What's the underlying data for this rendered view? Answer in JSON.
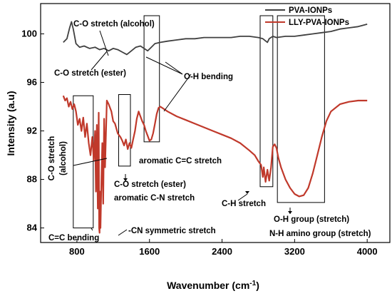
{
  "chart_data": {
    "type": "line",
    "xlabel": "Wavenumber (cm",
    "xlabel_sup": "-1",
    "xlabel_tail": ")",
    "ylabel": "Intensity (a.u)",
    "xlim": [
      400,
      4250
    ],
    "ylim": [
      82.8,
      102.5
    ],
    "xticks": [
      800,
      1600,
      2400,
      3200,
      4000
    ],
    "yticks": [
      84,
      88,
      92,
      96,
      100
    ],
    "legend_position": "top-right",
    "series": [
      {
        "name": "PVA-IONPs",
        "color": "#404040",
        "points": [
          [
            650,
            99.3
          ],
          [
            690,
            99.6
          ],
          [
            720,
            100.5
          ],
          [
            740,
            101.0
          ],
          [
            760,
            100.4
          ],
          [
            790,
            99.2
          ],
          [
            830,
            98.9
          ],
          [
            880,
            99.0
          ],
          [
            940,
            98.8
          ],
          [
            1000,
            98.9
          ],
          [
            1050,
            98.7
          ],
          [
            1100,
            98.8
          ],
          [
            1150,
            98.6
          ],
          [
            1200,
            98.8
          ],
          [
            1250,
            98.7
          ],
          [
            1300,
            98.5
          ],
          [
            1350,
            98.3
          ],
          [
            1400,
            98.6
          ],
          [
            1450,
            98.9
          ],
          [
            1500,
            99.0
          ],
          [
            1540,
            98.8
          ],
          [
            1580,
            98.6
          ],
          [
            1620,
            98.9
          ],
          [
            1660,
            99.2
          ],
          [
            1720,
            99.3
          ],
          [
            1800,
            99.4
          ],
          [
            1900,
            99.5
          ],
          [
            2000,
            99.6
          ],
          [
            2100,
            99.6
          ],
          [
            2200,
            99.7
          ],
          [
            2300,
            99.7
          ],
          [
            2400,
            99.7
          ],
          [
            2500,
            99.7
          ],
          [
            2600,
            99.8
          ],
          [
            2700,
            99.8
          ],
          [
            2800,
            99.7
          ],
          [
            2850,
            99.6
          ],
          [
            2900,
            99.3
          ],
          [
            2920,
            99.6
          ],
          [
            2960,
            99.8
          ],
          [
            3000,
            99.7
          ],
          [
            3100,
            99.8
          ],
          [
            3200,
            99.8
          ],
          [
            3300,
            99.9
          ],
          [
            3400,
            100.0
          ],
          [
            3500,
            100.1
          ],
          [
            3600,
            100.2
          ],
          [
            3700,
            100.4
          ],
          [
            3800,
            100.5
          ],
          [
            3900,
            100.6
          ],
          [
            4000,
            100.8
          ]
        ]
      },
      {
        "name": "LLY-PVA-IONPs",
        "color": "#c0392b",
        "points": [
          [
            650,
            94.9
          ],
          [
            670,
            94.5
          ],
          [
            690,
            94.7
          ],
          [
            710,
            94.0
          ],
          [
            730,
            94.4
          ],
          [
            750,
            93.8
          ],
          [
            770,
            94.2
          ],
          [
            790,
            93.6
          ],
          [
            810,
            92.5
          ],
          [
            830,
            93.0
          ],
          [
            850,
            92.0
          ],
          [
            870,
            93.1
          ],
          [
            890,
            91.5
          ],
          [
            910,
            92.6
          ],
          [
            930,
            91.0
          ],
          [
            950,
            90.0
          ],
          [
            970,
            91.5
          ],
          [
            985,
            89.6
          ],
          [
            1000,
            92.0
          ],
          [
            1010,
            87.0
          ],
          [
            1020,
            92.5
          ],
          [
            1030,
            85.6
          ],
          [
            1040,
            93.5
          ],
          [
            1045,
            84.0
          ],
          [
            1050,
            83.6
          ],
          [
            1055,
            87.0
          ],
          [
            1060,
            84.0
          ],
          [
            1070,
            88.0
          ],
          [
            1080,
            91.0
          ],
          [
            1090,
            86.0
          ],
          [
            1100,
            93.0
          ],
          [
            1110,
            89.0
          ],
          [
            1130,
            94.5
          ],
          [
            1150,
            94.2
          ],
          [
            1180,
            93.6
          ],
          [
            1200,
            92.8
          ],
          [
            1220,
            92.6
          ],
          [
            1250,
            91.8
          ],
          [
            1280,
            91.5
          ],
          [
            1300,
            91.2
          ],
          [
            1320,
            90.8
          ],
          [
            1340,
            91.3
          ],
          [
            1360,
            90.5
          ],
          [
            1380,
            91.0
          ],
          [
            1400,
            90.6
          ],
          [
            1420,
            91.3
          ],
          [
            1440,
            92.0
          ],
          [
            1460,
            93.0
          ],
          [
            1480,
            93.6
          ],
          [
            1500,
            93.2
          ],
          [
            1520,
            92.8
          ],
          [
            1540,
            92.5
          ],
          [
            1560,
            92.0
          ],
          [
            1580,
            91.6
          ],
          [
            1600,
            91.2
          ],
          [
            1620,
            91.3
          ],
          [
            1640,
            91.8
          ],
          [
            1660,
            92.6
          ],
          [
            1680,
            93.4
          ],
          [
            1700,
            93.9
          ],
          [
            1720,
            94.0
          ],
          [
            1800,
            93.6
          ],
          [
            1900,
            93.2
          ],
          [
            2000,
            92.9
          ],
          [
            2100,
            92.6
          ],
          [
            2200,
            92.3
          ],
          [
            2300,
            92.0
          ],
          [
            2400,
            91.7
          ],
          [
            2500,
            91.4
          ],
          [
            2600,
            91.0
          ],
          [
            2700,
            90.4
          ],
          [
            2760,
            90.0
          ],
          [
            2800,
            89.5
          ],
          [
            2830,
            89.2
          ],
          [
            2850,
            88.2
          ],
          [
            2860,
            89.0
          ],
          [
            2880,
            87.8
          ],
          [
            2900,
            88.8
          ],
          [
            2920,
            87.9
          ],
          [
            2940,
            89.0
          ],
          [
            2960,
            90.7
          ],
          [
            2980,
            90.9
          ],
          [
            3000,
            90.6
          ],
          [
            3020,
            89.8
          ],
          [
            3050,
            89.0
          ],
          [
            3100,
            88.0
          ],
          [
            3150,
            87.3
          ],
          [
            3200,
            86.8
          ],
          [
            3250,
            86.6
          ],
          [
            3300,
            86.7
          ],
          [
            3350,
            87.3
          ],
          [
            3400,
            88.5
          ],
          [
            3450,
            90.0
          ],
          [
            3500,
            91.5
          ],
          [
            3550,
            92.8
          ],
          [
            3600,
            93.6
          ],
          [
            3700,
            94.2
          ],
          [
            3800,
            94.4
          ],
          [
            3900,
            94.5
          ],
          [
            4000,
            94.5
          ]
        ]
      }
    ],
    "boxes": [
      {
        "x1": 760,
        "x2": 980,
        "y1": 84.0,
        "y2": 94.9
      },
      {
        "x1": 1260,
        "x2": 1390,
        "y1": 89.1,
        "y2": 95.0
      },
      {
        "x1": 1540,
        "x2": 1710,
        "y1": 91.1,
        "y2": 101.5
      },
      {
        "x1": 2820,
        "x2": 2960,
        "y1": 87.4,
        "y2": 101.5
      },
      {
        "x1": 3010,
        "x2": 3530,
        "y1": 86.1,
        "y2": 101.5
      }
    ],
    "annotations": [
      {
        "text": "C-O stretch (alcohol)"
      },
      {
        "text": "C-O stretch (ester)"
      },
      {
        "text": "O-H bending"
      },
      {
        "text": "aromatic C=C stretch"
      },
      {
        "text": "C-O stretch"
      },
      {
        "text": "(alcohol)"
      },
      {
        "text": "C-O stretch (ester)"
      },
      {
        "text": "aromatic C-N stretch"
      },
      {
        "text": "C-H stretch"
      },
      {
        "text": "O-H group (stretch)"
      },
      {
        "text": "N-H amino group (stretch)"
      },
      {
        "text": "C=C bending"
      },
      {
        "text": "-CN symmetric stretch"
      }
    ]
  }
}
